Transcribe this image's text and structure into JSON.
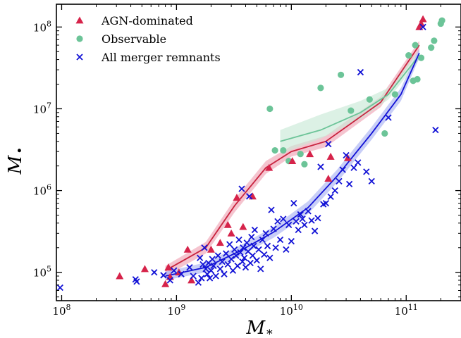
{
  "chart_data": {
    "type": "scatter",
    "title": "",
    "xlabel": "M",
    "xlabel_sub": "*",
    "ylabel": "M",
    "ylabel_sub": "•",
    "xscale": "log",
    "yscale": "log",
    "xlim": [
      90000000,
      300000000000
    ],
    "ylim": [
      45000,
      190000000
    ],
    "grid": false,
    "legend_location": "upper left",
    "x_ticks": [
      {
        "base": "10",
        "exp": "8",
        "value": 100000000
      },
      {
        "base": "10",
        "exp": "9",
        "value": 1000000000
      },
      {
        "base": "10",
        "exp": "10",
        "value": 10000000000
      },
      {
        "base": "10",
        "exp": "11",
        "value": 100000000000
      }
    ],
    "y_ticks": [
      {
        "base": "10",
        "exp": "5",
        "value": 100000
      },
      {
        "base": "10",
        "exp": "6",
        "value": 1000000
      },
      {
        "base": "10",
        "exp": "7",
        "value": 10000000
      },
      {
        "base": "10",
        "exp": "8",
        "value": 100000000
      }
    ],
    "series": [
      {
        "name": "AGN-dominated",
        "marker": "triangle",
        "color": "#d6234a",
        "points": [
          [
            320000000,
            90000
          ],
          [
            530000000,
            110000
          ],
          [
            800000000,
            72000
          ],
          [
            850000000,
            115000
          ],
          [
            880000000,
            88000
          ],
          [
            1050000000,
            100000
          ],
          [
            1250000000,
            190000
          ],
          [
            1350000000,
            80000
          ],
          [
            2000000000,
            190000
          ],
          [
            2400000000,
            230000
          ],
          [
            2800000000,
            380000
          ],
          [
            3000000000,
            300000
          ],
          [
            3350000000,
            820000
          ],
          [
            3800000000,
            360000
          ],
          [
            4600000000,
            850000
          ],
          [
            6400000000,
            1900000
          ],
          [
            10200000000,
            2300000
          ],
          [
            14500000000,
            2800000
          ],
          [
            21000000000,
            1400000
          ],
          [
            22000000000,
            2600000
          ],
          [
            31000000000,
            2500000
          ],
          [
            130000000000,
            100000000
          ],
          [
            135000000000,
            110000000
          ],
          [
            140000000000,
            125000000
          ]
        ],
        "trend": {
          "color": "#c8243f",
          "band_color": "#f0a4b6",
          "points": [
            [
              800000000,
              105000
            ],
            [
              1800000000,
              200000
            ],
            [
              3200000000,
              650000
            ],
            [
              6000000000,
              1900000
            ],
            [
              10000000000,
              3000000
            ],
            [
              20000000000,
              4000000
            ],
            [
              60000000000,
              12000000
            ],
            [
              130000000000,
              60000000
            ]
          ],
          "band_low": [
            [
              800000000,
              90000
            ],
            [
              1800000000,
              170000
            ],
            [
              3200000000,
              540000
            ],
            [
              6000000000,
              1600000
            ],
            [
              10000000000,
              2600000
            ],
            [
              20000000000,
              3400000
            ],
            [
              60000000000,
              10500000
            ],
            [
              130000000000,
              52000000
            ]
          ],
          "band_high": [
            [
              800000000,
              120000
            ],
            [
              1800000000,
              235000
            ],
            [
              3200000000,
              780000
            ],
            [
              6000000000,
              2300000
            ],
            [
              10000000000,
              3500000
            ],
            [
              20000000000,
              4700000
            ],
            [
              60000000000,
              14000000
            ],
            [
              130000000000,
              68000000
            ]
          ]
        }
      },
      {
        "name": "Observable",
        "marker": "circle",
        "color": "#6cc498",
        "points": [
          [
            6500000000,
            10000000
          ],
          [
            7200000000,
            3100000
          ],
          [
            8500000000,
            3100000
          ],
          [
            9500000000,
            2300000
          ],
          [
            12000000000,
            2800000
          ],
          [
            13000000000,
            2100000
          ],
          [
            18000000000,
            18000000
          ],
          [
            27000000000,
            26000000
          ],
          [
            33000000000,
            9500000
          ],
          [
            48000000000,
            13000000
          ],
          [
            65000000000,
            5000000
          ],
          [
            80000000000,
            15000000
          ],
          [
            105000000000,
            45000000
          ],
          [
            115000000000,
            22000000
          ],
          [
            120000000000,
            60000000
          ],
          [
            125000000000,
            23000000
          ],
          [
            135000000000,
            42000000
          ],
          [
            165000000000,
            56000000
          ],
          [
            175000000000,
            68000000
          ],
          [
            200000000000,
            110000000
          ],
          [
            205000000000,
            120000000
          ]
        ],
        "trend": {
          "color": "#6cc498",
          "band_color": "#c9ead7",
          "points": [
            [
              8000000000,
              4000000
            ],
            [
              18000000000,
              5500000
            ],
            [
              40000000000,
              9000000
            ],
            [
              70000000000,
              15000000
            ],
            [
              130000000000,
              45000000
            ]
          ],
          "band_low": [
            [
              8000000000,
              2800000
            ],
            [
              18000000000,
              4300000
            ],
            [
              40000000000,
              7500000
            ],
            [
              70000000000,
              13000000
            ],
            [
              130000000000,
              40000000
            ]
          ],
          "band_high": [
            [
              8000000000,
              5500000
            ],
            [
              18000000000,
              8500000
            ],
            [
              40000000000,
              12500000
            ],
            [
              70000000000,
              18000000
            ],
            [
              130000000000,
              52000000
            ]
          ]
        }
      },
      {
        "name": "All merger remnants",
        "marker": "x",
        "color": "#1212d6",
        "points": [
          [
            97000000,
            65000
          ],
          [
            440000000,
            82000
          ],
          [
            450000000,
            77000
          ],
          [
            640000000,
            100000
          ],
          [
            770000000,
            92000
          ],
          [
            880000000,
            80000
          ],
          [
            950000000,
            105000
          ],
          [
            1100000000,
            95000
          ],
          [
            1300000000,
            115000
          ],
          [
            1400000000,
            90000
          ],
          [
            1550000000,
            75000
          ],
          [
            1600000000,
            150000
          ],
          [
            1650000000,
            85000
          ],
          [
            1700000000,
            125000
          ],
          [
            1750000000,
            200000
          ],
          [
            1800000000,
            110000
          ],
          [
            1850000000,
            95000
          ],
          [
            1900000000,
            130000
          ],
          [
            1950000000,
            85000
          ],
          [
            2000000000,
            105000
          ],
          [
            2050000000,
            145000
          ],
          [
            2100000000,
            120000
          ],
          [
            2200000000,
            90000
          ],
          [
            2300000000,
            160000
          ],
          [
            2400000000,
            110000
          ],
          [
            2500000000,
            135000
          ],
          [
            2600000000,
            95000
          ],
          [
            2700000000,
            170000
          ],
          [
            2800000000,
            125000
          ],
          [
            2900000000,
            220000
          ],
          [
            3000000000,
            145000
          ],
          [
            3100000000,
            105000
          ],
          [
            3200000000,
            190000
          ],
          [
            3300000000,
            160000
          ],
          [
            3400000000,
            120000
          ],
          [
            3500000000,
            250000
          ],
          [
            3600000000,
            175000
          ],
          [
            3700000000,
            1050000
          ],
          [
            3750000000,
            135000
          ],
          [
            3800000000,
            200000
          ],
          [
            3900000000,
            150000
          ],
          [
            4000000000,
            115000
          ],
          [
            4100000000,
            230000
          ],
          [
            4200000000,
            180000
          ],
          [
            4300000000,
            850000
          ],
          [
            4400000000,
            130000
          ],
          [
            4500000000,
            270000
          ],
          [
            4600000000,
            160000
          ],
          [
            4700000000,
            210000
          ],
          [
            4800000000,
            330000
          ],
          [
            5000000000,
            140000
          ],
          [
            5200000000,
            190000
          ],
          [
            5400000000,
            110000
          ],
          [
            5600000000,
            250000
          ],
          [
            5800000000,
            165000
          ],
          [
            6000000000,
            300000
          ],
          [
            6200000000,
            210000
          ],
          [
            6500000000,
            150000
          ],
          [
            6700000000,
            580000
          ],
          [
            7000000000,
            340000
          ],
          [
            7300000000,
            200000
          ],
          [
            7600000000,
            420000
          ],
          [
            8000000000,
            250000
          ],
          [
            8500000000,
            450000
          ],
          [
            9000000000,
            190000
          ],
          [
            9500000000,
            380000
          ],
          [
            10000000000,
            240000
          ],
          [
            10500000000,
            700000
          ],
          [
            11000000000,
            420000
          ],
          [
            11500000000,
            330000
          ],
          [
            12000000000,
            510000
          ],
          [
            12500000000,
            450000
          ],
          [
            13000000000,
            380000
          ],
          [
            14000000000,
            560000
          ],
          [
            15000000000,
            430000
          ],
          [
            16000000000,
            320000
          ],
          [
            17000000000,
            460000
          ],
          [
            18000000000,
            1950000
          ],
          [
            19000000000,
            680000
          ],
          [
            20000000000,
            700000
          ],
          [
            21000000000,
            3700000
          ],
          [
            22000000000,
            840000
          ],
          [
            24000000000,
            1000000
          ],
          [
            26000000000,
            1300000
          ],
          [
            28000000000,
            1800000
          ],
          [
            30000000000,
            2700000
          ],
          [
            32000000000,
            1200000
          ],
          [
            35000000000,
            1900000
          ],
          [
            38000000000,
            2200000
          ],
          [
            40000000000,
            28000000
          ],
          [
            45000000000,
            1700000
          ],
          [
            50000000000,
            1300000
          ],
          [
            70000000000,
            7800000
          ],
          [
            140000000000,
            100000000
          ],
          [
            180000000000,
            5500000
          ]
        ],
        "trend": {
          "color": "#1212d6",
          "band_color": "#aab3f2",
          "points": [
            [
              800000000,
              90000
            ],
            [
              1800000000,
              115000
            ],
            [
              3500000000,
              180000
            ],
            [
              7000000000,
              310000
            ],
            [
              14000000000,
              620000
            ],
            [
              25000000000,
              1500000
            ],
            [
              50000000000,
              5000000
            ],
            [
              90000000000,
              15000000
            ],
            [
              130000000000,
              48000000
            ]
          ],
          "band_low": [
            [
              800000000,
              80000
            ],
            [
              1800000000,
              100000
            ],
            [
              3500000000,
              155000
            ],
            [
              7000000000,
              265000
            ],
            [
              14000000000,
              520000
            ],
            [
              25000000000,
              1250000
            ],
            [
              50000000000,
              4200000
            ],
            [
              90000000000,
              12500000
            ],
            [
              130000000000,
              42000000
            ]
          ],
          "band_high": [
            [
              800000000,
              102000
            ],
            [
              1800000000,
              132000
            ],
            [
              3500000000,
              210000
            ],
            [
              7000000000,
              360000
            ],
            [
              14000000000,
              740000
            ],
            [
              25000000000,
              1800000
            ],
            [
              50000000000,
              6000000
            ],
            [
              90000000000,
              18000000
            ],
            [
              130000000000,
              55000000
            ]
          ]
        }
      }
    ]
  }
}
